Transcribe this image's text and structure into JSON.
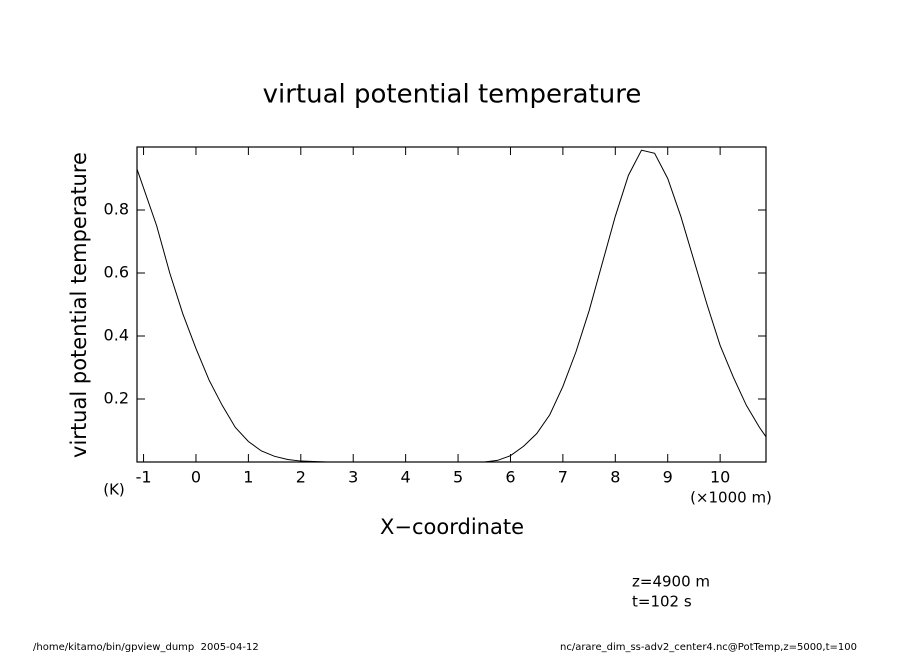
{
  "chart_data": {
    "type": "line",
    "title": "virtual potential temperature",
    "y_label": "virtual potential temperature",
    "y_unit": "(K)",
    "x_label": "X−coordinate",
    "x_unit": "(×1000 m)",
    "annotations": [
      "z=4900 m",
      "t=102 s"
    ],
    "footer_left": "/home/kitamo/bin/gpview_dump  2005-04-12",
    "footer_right": "nc/arare_dim_ss-adv2_center4.nc@PotTemp,z=5000,t=100",
    "color": "#000000",
    "xlim": [
      -1.125,
      10.875
    ],
    "xticks": [
      -1,
      0,
      1,
      2,
      3,
      4,
      5,
      6,
      7,
      8,
      9,
      10
    ],
    "ylim": [
      0,
      1
    ],
    "yticks": [
      0.2,
      0.4,
      0.6,
      0.8
    ],
    "x": [
      -1.125,
      -0.75,
      -0.5,
      -0.25,
      0,
      0.25,
      0.5,
      0.75,
      1,
      1.25,
      1.5,
      1.75,
      2,
      2.5,
      3,
      3.5,
      4,
      4.5,
      5,
      5.5,
      5.75,
      6,
      6.25,
      6.5,
      6.75,
      7,
      7.25,
      7.5,
      7.75,
      8,
      8.25,
      8.5,
      8.75,
      9,
      9.25,
      9.5,
      9.75,
      10,
      10.25,
      10.5,
      10.75,
      10.875
    ],
    "values": [
      0.93,
      0.75,
      0.6,
      0.47,
      0.36,
      0.26,
      0.18,
      0.11,
      0.065,
      0.035,
      0.018,
      0.008,
      0.003,
      0,
      0,
      0,
      0,
      0,
      0,
      0,
      0.005,
      0.02,
      0.05,
      0.09,
      0.15,
      0.24,
      0.35,
      0.48,
      0.63,
      0.78,
      0.91,
      0.99,
      0.98,
      0.9,
      0.78,
      0.64,
      0.5,
      0.37,
      0.27,
      0.18,
      0.11,
      0.08
    ]
  }
}
